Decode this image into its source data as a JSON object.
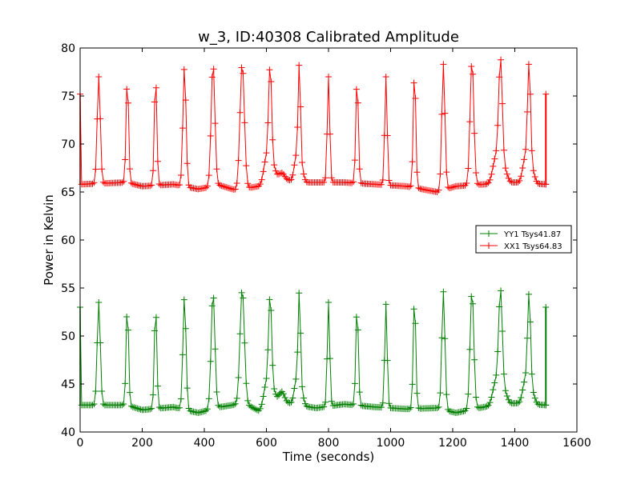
{
  "chart_data": {
    "type": "line",
    "title": "w_3, ID:40308 Calibrated Amplitude",
    "xlabel": "Time (seconds)",
    "ylabel": "Power in Kelvin",
    "xlim": [
      0,
      1600
    ],
    "ylim": [
      40,
      80
    ],
    "xticks": [
      0,
      200,
      400,
      600,
      800,
      1000,
      1200,
      1400,
      1600
    ],
    "yticks": [
      40,
      45,
      50,
      55,
      60,
      65,
      70,
      75,
      80
    ],
    "grid": false,
    "legend_position": "center-right",
    "marker": "+",
    "sample_interval": 5,
    "series": [
      {
        "name": "YY1 Tsys41.87",
        "color": "#008000",
        "baseline": [
          [
            0,
            42.8
          ],
          [
            150,
            42.8
          ],
          [
            200,
            42.3
          ],
          [
            300,
            42.6
          ],
          [
            380,
            42.0
          ],
          [
            450,
            42.6
          ],
          [
            530,
            43.0
          ],
          [
            575,
            42.2
          ],
          [
            640,
            43.3
          ],
          [
            700,
            42.8
          ],
          [
            760,
            42.5
          ],
          [
            850,
            42.9
          ],
          [
            950,
            42.6
          ],
          [
            1050,
            42.4
          ],
          [
            1150,
            42.5
          ],
          [
            1210,
            42.0
          ],
          [
            1300,
            42.6
          ],
          [
            1400,
            43.0
          ],
          [
            1500,
            42.8
          ]
        ],
        "peaks": [
          {
            "x": 60,
            "y": 53.5,
            "w": 5,
            "shoulder": 0
          },
          {
            "x": 152,
            "y": 53.2,
            "w": 4,
            "shoulder": 0
          },
          {
            "x": 243,
            "y": 53.2,
            "w": 4,
            "shoulder": 0
          },
          {
            "x": 336,
            "y": 54.0,
            "w": 5,
            "shoulder": 0
          },
          {
            "x": 428,
            "y": 54.6,
            "w": 6,
            "shoulder": 0
          },
          {
            "x": 522,
            "y": 55.0,
            "w": 7,
            "shoulder": 0
          },
          {
            "x": 612,
            "y": 53.6,
            "w": 5,
            "shoulder": 4
          },
          {
            "x": 706,
            "y": 53.8,
            "w": 4,
            "shoulder": 3
          },
          {
            "x": 800,
            "y": 53.5,
            "w": 4,
            "shoulder": 0
          },
          {
            "x": 892,
            "y": 53.2,
            "w": 4,
            "shoulder": 0
          },
          {
            "x": 985,
            "y": 53.3,
            "w": 4,
            "shoulder": 0
          },
          {
            "x": 1077,
            "y": 54.2,
            "w": 4,
            "shoulder": 0
          },
          {
            "x": 1170,
            "y": 54.6,
            "w": 5,
            "shoulder": 0
          },
          {
            "x": 1262,
            "y": 54.8,
            "w": 6,
            "shoulder": 0
          },
          {
            "x": 1354,
            "y": 54.0,
            "w": 6,
            "shoulder": 3
          },
          {
            "x": 1446,
            "y": 53.6,
            "w": 5,
            "shoulder": 3
          }
        ],
        "bumps": [
          {
            "x": 650,
            "y": 44.2,
            "w": 8
          }
        ],
        "start": {
          "x": 0,
          "y": 53.0
        },
        "end_spike": {
          "x": 1500,
          "top": 53.0,
          "bottom": 42.8
        }
      },
      {
        "name": "XX1 Tsys64.83",
        "color": "#ff0000",
        "baseline": [
          [
            0,
            65.8
          ],
          [
            150,
            66.0
          ],
          [
            200,
            65.6
          ],
          [
            300,
            65.8
          ],
          [
            380,
            65.3
          ],
          [
            450,
            65.7
          ],
          [
            500,
            65.2
          ],
          [
            575,
            65.6
          ],
          [
            640,
            66.5
          ],
          [
            700,
            66.0
          ],
          [
            760,
            66.0
          ],
          [
            850,
            66.0
          ],
          [
            950,
            65.8
          ],
          [
            1050,
            65.6
          ],
          [
            1150,
            65.0
          ],
          [
            1210,
            65.6
          ],
          [
            1300,
            65.8
          ],
          [
            1400,
            66.0
          ],
          [
            1500,
            65.8
          ]
        ],
        "peaks": [
          {
            "x": 60,
            "y": 77.0,
            "w": 5,
            "shoulder": 0
          },
          {
            "x": 152,
            "y": 77.0,
            "w": 4,
            "shoulder": 0
          },
          {
            "x": 243,
            "y": 77.2,
            "w": 4,
            "shoulder": 0
          },
          {
            "x": 336,
            "y": 78.0,
            "w": 5,
            "shoulder": 0
          },
          {
            "x": 428,
            "y": 78.5,
            "w": 6,
            "shoulder": 0
          },
          {
            "x": 522,
            "y": 78.5,
            "w": 7,
            "shoulder": 0
          },
          {
            "x": 612,
            "y": 77.5,
            "w": 5,
            "shoulder": 4
          },
          {
            "x": 706,
            "y": 77.5,
            "w": 4,
            "shoulder": 3
          },
          {
            "x": 800,
            "y": 77.0,
            "w": 4,
            "shoulder": 0
          },
          {
            "x": 892,
            "y": 77.0,
            "w": 4,
            "shoulder": 0
          },
          {
            "x": 985,
            "y": 77.0,
            "w": 4,
            "shoulder": 0
          },
          {
            "x": 1077,
            "y": 77.8,
            "w": 4,
            "shoulder": 0
          },
          {
            "x": 1170,
            "y": 78.3,
            "w": 5,
            "shoulder": 0
          },
          {
            "x": 1262,
            "y": 78.8,
            "w": 6,
            "shoulder": 0
          },
          {
            "x": 1354,
            "y": 78.0,
            "w": 6,
            "shoulder": 3
          },
          {
            "x": 1446,
            "y": 77.5,
            "w": 5,
            "shoulder": 3
          }
        ],
        "bumps": [
          {
            "x": 650,
            "y": 67.0,
            "w": 8
          }
        ],
        "start": {
          "x": 0,
          "y": 75.2
        },
        "end_spike": {
          "x": 1500,
          "top": 75.2,
          "bottom": 65.8
        }
      }
    ]
  }
}
